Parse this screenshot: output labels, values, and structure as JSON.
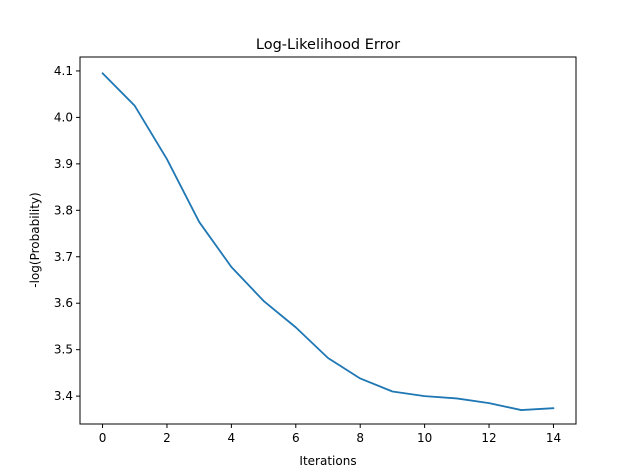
{
  "chart_data": {
    "type": "line",
    "title": "Log-Likelihood Error",
    "xlabel": "Iterations",
    "ylabel": "-log(Probability)",
    "xlim": [
      -0.7,
      14.7
    ],
    "ylim": [
      3.34,
      4.13
    ],
    "x_ticks": [
      0,
      2,
      4,
      6,
      8,
      10,
      12,
      14
    ],
    "y_ticks": [
      3.4,
      3.5,
      3.6,
      3.7,
      3.8,
      3.9,
      4.0,
      4.1
    ],
    "x_tick_labels": [
      "0",
      "2",
      "4",
      "6",
      "8",
      "10",
      "12",
      "14"
    ],
    "y_tick_labels": [
      "3.4",
      "3.5",
      "3.6",
      "3.7",
      "3.8",
      "3.9",
      "4.0",
      "4.1"
    ],
    "grid": false,
    "legend": "none",
    "series": [
      {
        "color": "#1f77b4",
        "x": [
          0,
          1,
          2,
          3,
          4,
          5,
          6,
          7,
          8,
          9,
          10,
          11,
          12,
          13,
          14
        ],
        "y": [
          4.095,
          4.025,
          3.91,
          3.775,
          3.678,
          3.605,
          3.548,
          3.482,
          3.438,
          3.41,
          3.4,
          3.395,
          3.385,
          3.37,
          3.374
        ]
      }
    ]
  }
}
